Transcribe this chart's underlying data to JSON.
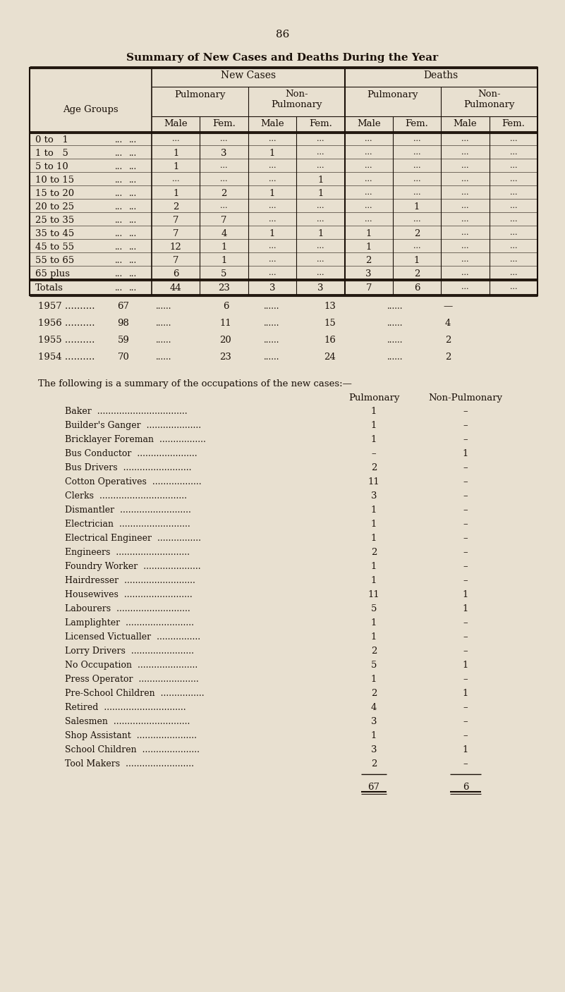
{
  "page_number": "86",
  "main_title": "Summary of New Cases and Deaths During the Year",
  "bg_color": "#e8e0d0",
  "text_color": "#1a1008",
  "table1_rows": [
    [
      "0 to   1",
      "...",
      "...",
      "...",
      "...",
      "...",
      "...",
      "...",
      "..."
    ],
    [
      "1 to   5",
      "1",
      "3",
      "1",
      "...",
      "...",
      "...",
      "...",
      "..."
    ],
    [
      "5 to 10",
      "1",
      "...",
      "...",
      "...",
      "...",
      "...",
      "...",
      "..."
    ],
    [
      "10 to 15",
      "...",
      "...",
      "...",
      "1",
      "...",
      "...",
      "...",
      "..."
    ],
    [
      "15 to 20",
      "1",
      "2",
      "1",
      "1",
      "...",
      "...",
      "...",
      "..."
    ],
    [
      "20 to 25",
      "2",
      "...",
      "...",
      "...",
      "...",
      "1",
      "...",
      "..."
    ],
    [
      "25 to 35",
      "7",
      "7",
      "...",
      "...",
      "...",
      "...",
      "...",
      "..."
    ],
    [
      "35 to 45",
      "7",
      "4",
      "1",
      "1",
      "1",
      "2",
      "...",
      "..."
    ],
    [
      "45 to 55",
      "12",
      "1",
      "...",
      "...",
      "1",
      "...",
      "...",
      "..."
    ],
    [
      "55 to 65",
      "7",
      "1",
      "...",
      "...",
      "2",
      "1",
      "...",
      "..."
    ],
    [
      "65 plus",
      "6",
      "5",
      "...",
      "...",
      "3",
      "2",
      "...",
      "..."
    ]
  ],
  "totals_row": [
    "Totals",
    "44",
    "23",
    "3",
    "3",
    "7",
    "6",
    "...",
    "..."
  ],
  "year_rows": [
    [
      "1957 ..........",
      "67",
      "......",
      "6",
      "......",
      "13",
      "......",
      "—"
    ],
    [
      "1956 ..........",
      "98",
      "......",
      "11",
      "......",
      "15",
      "......",
      "4"
    ],
    [
      "1955 ..........",
      "59",
      "......",
      "20",
      "......",
      "16",
      "......",
      "2"
    ],
    [
      "1954 ..........",
      "70",
      "......",
      "23",
      "......",
      "24",
      "......",
      "2"
    ]
  ],
  "occ_title": "The following is a summary of the occupations of the new cases:—",
  "occ_headers": [
    "Pulmonary",
    "Non-Pulmonary"
  ],
  "occupations": [
    [
      "Baker  .................................",
      "1",
      "–"
    ],
    [
      "Builder's Ganger  ....................",
      "1",
      "–"
    ],
    [
      "Bricklayer Foreman  .................",
      "1",
      "–"
    ],
    [
      "Bus Conductor  ......................",
      "–",
      "1"
    ],
    [
      "Bus Drivers  .........................",
      "2",
      "–"
    ],
    [
      "Cotton Operatives  ..................",
      "11",
      "–"
    ],
    [
      "Clerks  ................................",
      "3",
      "–"
    ],
    [
      "Dismantler  ..........................",
      "1",
      "–"
    ],
    [
      "Electrician  ..........................",
      "1",
      "–"
    ],
    [
      "Electrical Engineer  ................",
      "1",
      "–"
    ],
    [
      "Engineers  ...........................",
      "2",
      "–"
    ],
    [
      "Foundry Worker  .....................",
      "1",
      "–"
    ],
    [
      "Hairdresser  ..........................",
      "1",
      "–"
    ],
    [
      "Housewives  .........................",
      "11",
      "1"
    ],
    [
      "Labourers  ...........................",
      "5",
      "1"
    ],
    [
      "Lamplighter  .........................",
      "1",
      "–"
    ],
    [
      "Licensed Victualler  ................",
      "1",
      "–"
    ],
    [
      "Lorry Drivers  .......................",
      "2",
      "–"
    ],
    [
      "No Occupation  ......................",
      "5",
      "1"
    ],
    [
      "Press Operator  ......................",
      "1",
      "–"
    ],
    [
      "Pre-School Children  ................",
      "2",
      "1"
    ],
    [
      "Retired  ..............................",
      "4",
      "–"
    ],
    [
      "Salesmen  ............................",
      "3",
      "–"
    ],
    [
      "Shop Assistant  ......................",
      "1",
      "–"
    ],
    [
      "School Children  .....................",
      "3",
      "1"
    ],
    [
      "Tool Makers  .........................",
      "2",
      "–"
    ]
  ],
  "occ_totals": [
    "67",
    "6"
  ]
}
